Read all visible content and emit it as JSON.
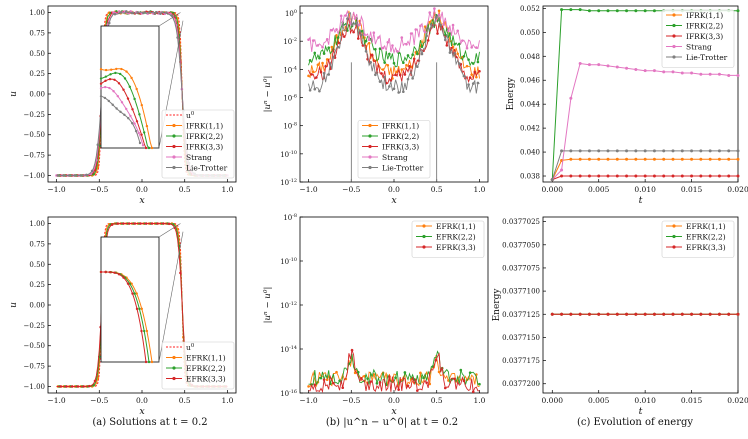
{
  "captions": {
    "a": "(a) Solutions at t = 0.2",
    "b": "(b) |u^n − u^0| at t = 0.2",
    "c": "(c) Evolution of energy"
  },
  "colors": {
    "orange": "#ff7f0e",
    "green": "#2ca02c",
    "red": "#d62728",
    "pink": "#e377c2",
    "gray": "#7f7f7f",
    "init": "#ff2020"
  },
  "chart_data": [
    {
      "id": "a1",
      "type": "line",
      "panel": "top-left",
      "xlabel": "x",
      "ylabel": "u",
      "xlim": [
        -1.1,
        1.1
      ],
      "ylim": [
        -1.08,
        1.08
      ],
      "xticks": [
        -1.0,
        -0.5,
        0.0,
        0.5,
        1.0
      ],
      "xtick_labels": [
        "−1.0",
        "−0.5",
        "0.0",
        "0.5",
        "1.0"
      ],
      "yticks": [
        -1.0,
        -0.75,
        -0.5,
        -0.25,
        0.0,
        0.25,
        0.5,
        0.75,
        1.0
      ],
      "ytick_labels": [
        "−1.00",
        "−0.75",
        "−0.50",
        "−0.25",
        "0.00",
        "0.25",
        "0.50",
        "0.75",
        "1.00"
      ],
      "legend": [
        "u^0",
        "IFRK(1,1)",
        "IFRK(2,2)",
        "IFRK(3,3)",
        "Strang",
        "Lie-Trotter"
      ],
      "legend_loc": "lower-right",
      "series": [
        {
          "name": "u^0",
          "color": "init",
          "dashed": true
        },
        {
          "name": "IFRK(1,1)",
          "color": "orange"
        },
        {
          "name": "IFRK(2,2)",
          "color": "green"
        },
        {
          "name": "IFRK(3,3)",
          "color": "red"
        },
        {
          "name": "Strang",
          "color": "pink"
        },
        {
          "name": "Lie-Trotter",
          "color": "gray"
        }
      ],
      "inset": true
    },
    {
      "id": "b1",
      "type": "line",
      "panel": "top-middle",
      "xlabel": "x",
      "ylabel": "|u^n − u^0|",
      "yscale": "log",
      "xlim": [
        -1.1,
        1.1
      ],
      "ylim_exp": [
        -12,
        0.5
      ],
      "xticks": [
        -1.0,
        -0.5,
        0.0,
        0.5,
        1.0
      ],
      "xtick_labels": [
        "−1.0",
        "−0.5",
        "0.0",
        "0.5",
        "1.0"
      ],
      "yticks_exp": [
        0,
        -2,
        -4,
        -6,
        -8,
        -10,
        -12
      ],
      "ytick_labels": [
        "10^0",
        "10^-2",
        "10^-4",
        "10^-6",
        "10^-8",
        "10^-10",
        "10^-12"
      ],
      "legend": [
        "IFRK(1,1)",
        "IFRK(2,2)",
        "IFRK(3,3)",
        "Strang",
        "Lie-Trotter"
      ],
      "legend_loc": "lower-center",
      "series": [
        {
          "name": "IFRK(1,1)",
          "color": "orange",
          "peak": -0.3,
          "base": -4.2
        },
        {
          "name": "IFRK(2,2)",
          "color": "green",
          "peak": -0.7,
          "base": -3.3
        },
        {
          "name": "IFRK(3,3)",
          "color": "red",
          "peak": -0.9,
          "base": -4.6
        },
        {
          "name": "Strang",
          "color": "pink",
          "peak": -0.2,
          "base": -2.3
        },
        {
          "name": "Lie-Trotter",
          "color": "gray",
          "peak": -0.5,
          "base": -5.3
        }
      ]
    },
    {
      "id": "c1",
      "type": "line",
      "panel": "top-right",
      "xlabel": "t",
      "ylabel": "Energy",
      "xlim": [
        -0.001,
        0.02
      ],
      "ylim": [
        0.0375,
        0.0522
      ],
      "xticks": [
        0.0,
        0.005,
        0.01,
        0.015,
        0.02
      ],
      "xtick_labels": [
        "0.000",
        "0.005",
        "0.010",
        "0.015",
        "0.020"
      ],
      "yticks": [
        0.038,
        0.04,
        0.042,
        0.044,
        0.046,
        0.048,
        0.05,
        0.052
      ],
      "ytick_labels": [
        "0.038",
        "0.040",
        "0.042",
        "0.044",
        "0.046",
        "0.048",
        "0.050",
        "0.052"
      ],
      "legend": [
        "IFRK(1,1)",
        "IFRK(2,2)",
        "IFRK(3,3)",
        "Strang",
        "Lie-Trotter"
      ],
      "legend_loc": "upper-right",
      "t": [
        0.0,
        0.001,
        0.002,
        0.003,
        0.004,
        0.005,
        0.006,
        0.007,
        0.008,
        0.009,
        0.01,
        0.011,
        0.012,
        0.013,
        0.014,
        0.015,
        0.016,
        0.017,
        0.018,
        0.019,
        0.02
      ],
      "series": [
        {
          "name": "IFRK(1,1)",
          "color": "orange",
          "values": [
            0.0377,
            0.0393,
            0.0394,
            0.0394,
            0.0394,
            0.0394,
            0.0394,
            0.0394,
            0.0394,
            0.0394,
            0.0394,
            0.0394,
            0.0394,
            0.0394,
            0.0394,
            0.0394,
            0.0394,
            0.0394,
            0.0394,
            0.0394,
            0.0394
          ]
        },
        {
          "name": "IFRK(2,2)",
          "color": "green",
          "values": [
            0.0377,
            0.0519,
            0.0519,
            0.0519,
            0.0518,
            0.0518,
            0.0518,
            0.0518,
            0.0518,
            0.0518,
            0.0518,
            0.0518,
            0.0518,
            0.0518,
            0.0518,
            0.0518,
            0.0518,
            0.0518,
            0.0518,
            0.0518,
            0.0518
          ]
        },
        {
          "name": "IFRK(3,3)",
          "color": "red",
          "values": [
            0.0377,
            0.038,
            0.038,
            0.038,
            0.038,
            0.038,
            0.038,
            0.038,
            0.038,
            0.038,
            0.038,
            0.038,
            0.038,
            0.038,
            0.038,
            0.038,
            0.038,
            0.038,
            0.038,
            0.038,
            0.038
          ]
        },
        {
          "name": "Strang",
          "color": "pink",
          "values": [
            0.0377,
            0.0385,
            0.0445,
            0.0474,
            0.0473,
            0.0473,
            0.0472,
            0.0471,
            0.047,
            0.0469,
            0.0468,
            0.0468,
            0.0467,
            0.0467,
            0.0466,
            0.0466,
            0.0465,
            0.0465,
            0.0465,
            0.0464,
            0.0464
          ]
        },
        {
          "name": "Lie-Trotter",
          "color": "gray",
          "values": [
            0.0377,
            0.0401,
            0.0401,
            0.0401,
            0.0401,
            0.0401,
            0.0401,
            0.0401,
            0.0401,
            0.0401,
            0.0401,
            0.0401,
            0.0401,
            0.0401,
            0.0401,
            0.0401,
            0.0401,
            0.0401,
            0.0401,
            0.0401,
            0.0401
          ]
        }
      ]
    },
    {
      "id": "a2",
      "type": "line",
      "panel": "bottom-left",
      "xlabel": "x",
      "ylabel": "u",
      "xlim": [
        -1.1,
        1.1
      ],
      "ylim": [
        -1.08,
        1.08
      ],
      "xticks": [
        -1.0,
        -0.5,
        0.0,
        0.5,
        1.0
      ],
      "xtick_labels": [
        "−1.0",
        "−0.5",
        "0.0",
        "0.5",
        "1.0"
      ],
      "yticks": [
        -1.0,
        -0.75,
        -0.5,
        -0.25,
        0.0,
        0.25,
        0.5,
        0.75,
        1.0
      ],
      "ytick_labels": [
        "−1.00",
        "−0.75",
        "−0.50",
        "−0.25",
        "0.00",
        "0.25",
        "0.50",
        "0.75",
        "1.00"
      ],
      "legend": [
        "u^0",
        "EFRK(1,1)",
        "EFRK(2,2)",
        "EFRK(3,3)"
      ],
      "legend_loc": "lower-right",
      "series": [
        {
          "name": "u^0",
          "color": "init",
          "dashed": true
        },
        {
          "name": "EFRK(1,1)",
          "color": "orange"
        },
        {
          "name": "EFRK(2,2)",
          "color": "green"
        },
        {
          "name": "EFRK(3,3)",
          "color": "red"
        }
      ],
      "inset": true
    },
    {
      "id": "b2",
      "type": "line",
      "panel": "bottom-middle",
      "xlabel": "x",
      "ylabel": "|u^n − u^0|",
      "yscale": "log",
      "xlim": [
        -1.1,
        1.1
      ],
      "ylim_exp": [
        -16,
        -8
      ],
      "xticks": [
        -1.0,
        -0.5,
        0.0,
        0.5,
        1.0
      ],
      "xtick_labels": [
        "−1.0",
        "−0.5",
        "0.0",
        "0.5",
        "1.0"
      ],
      "yticks_exp": [
        -8,
        -10,
        -12,
        -14,
        -16
      ],
      "ytick_labels": [
        "10^-8",
        "10^-10",
        "10^-12",
        "10^-14",
        "10^-16"
      ],
      "legend": [
        "EFRK(1,1)",
        "EFRK(2,2)",
        "EFRK(3,3)"
      ],
      "legend_loc": "upper-right",
      "series": [
        {
          "name": "EFRK(1,1)",
          "color": "orange",
          "peak": -14.6,
          "base": -15.4
        },
        {
          "name": "EFRK(2,2)",
          "color": "green",
          "peak": -14.4,
          "base": -15.3
        },
        {
          "name": "EFRK(3,3)",
          "color": "red",
          "peak": -14.2,
          "base": -15.6
        }
      ]
    },
    {
      "id": "c2",
      "type": "line",
      "panel": "bottom-right",
      "xlabel": "t",
      "ylabel": "Energy",
      "xlim": [
        -0.001,
        0.02
      ],
      "ylim": [
        0.037721,
        0.037702
      ],
      "xticks": [
        0.0,
        0.005,
        0.01,
        0.015,
        0.02
      ],
      "xtick_labels": [
        "0.000",
        "0.005",
        "0.010",
        "0.015",
        "0.020"
      ],
      "yticks": [
        0.0377025,
        0.037705,
        0.0377075,
        0.03771,
        0.0377125,
        0.037715,
        0.0377175,
        0.03772
      ],
      "ytick_labels": [
        "0.0377025",
        "0.0377050",
        "0.0377075",
        "0.0377100",
        "0.0377125",
        "0.0377150",
        "0.0377175",
        "0.0377200"
      ],
      "legend": [
        "EFRK(1,1)",
        "EFRK(2,2)",
        "EFRK(3,3)"
      ],
      "legend_loc": "upper-right",
      "t": [
        0.0,
        0.001,
        0.002,
        0.003,
        0.004,
        0.005,
        0.006,
        0.007,
        0.008,
        0.009,
        0.01,
        0.011,
        0.012,
        0.013,
        0.014,
        0.015,
        0.016,
        0.017,
        0.018,
        0.019,
        0.02
      ],
      "series": [
        {
          "name": "EFRK(1,1)",
          "color": "orange",
          "values": [
            0.0377125,
            0.0377125,
            0.0377125,
            0.0377125,
            0.0377125,
            0.0377125,
            0.0377125,
            0.0377125,
            0.0377125,
            0.0377125,
            0.0377125,
            0.0377125,
            0.0377125,
            0.0377125,
            0.0377125,
            0.0377125,
            0.0377125,
            0.0377125,
            0.0377125,
            0.0377125,
            0.0377125
          ]
        },
        {
          "name": "EFRK(2,2)",
          "color": "green",
          "values": [
            0.0377125,
            0.0377125,
            0.0377125,
            0.0377125,
            0.0377125,
            0.0377125,
            0.0377125,
            0.0377125,
            0.0377125,
            0.0377125,
            0.0377125,
            0.0377125,
            0.0377125,
            0.0377125,
            0.0377125,
            0.0377125,
            0.0377125,
            0.0377125,
            0.0377125,
            0.0377125,
            0.0377125
          ]
        },
        {
          "name": "EFRK(3,3)",
          "color": "red",
          "values": [
            0.0377125,
            0.0377125,
            0.0377125,
            0.0377125,
            0.0377125,
            0.0377125,
            0.0377125,
            0.0377125,
            0.0377125,
            0.0377125,
            0.0377125,
            0.0377125,
            0.0377125,
            0.0377125,
            0.0377125,
            0.0377125,
            0.0377125,
            0.0377125,
            0.0377125,
            0.0377125,
            0.0377125
          ]
        }
      ]
    }
  ]
}
